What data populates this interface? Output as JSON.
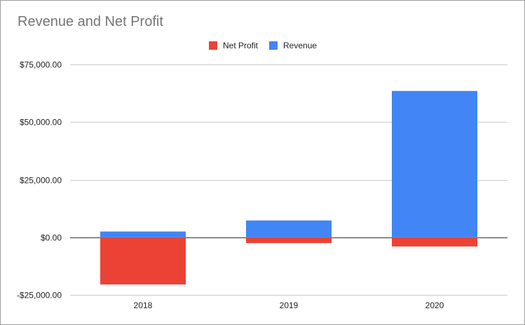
{
  "chart_data": {
    "type": "bar",
    "stacked": true,
    "title": "Revenue and Net Profit",
    "categories": [
      "2018",
      "2019",
      "2020"
    ],
    "series": [
      {
        "name": "Net Profit",
        "color": "#ea4335",
        "values": [
          -20500,
          -2500,
          -4000
        ]
      },
      {
        "name": "Revenue",
        "color": "#4285f4",
        "values": [
          2500,
          7300,
          63500
        ]
      }
    ],
    "ylim": [
      -25000,
      75000
    ],
    "yticks": [
      -25000,
      0,
      25000,
      50000,
      75000
    ],
    "ytick_labels": [
      "-$25,000.00",
      "$0.00",
      "$25,000.00",
      "$50,000.00",
      "$75,000.00"
    ],
    "legend_position": "top",
    "grid": true,
    "xlabel": "",
    "ylabel": ""
  }
}
